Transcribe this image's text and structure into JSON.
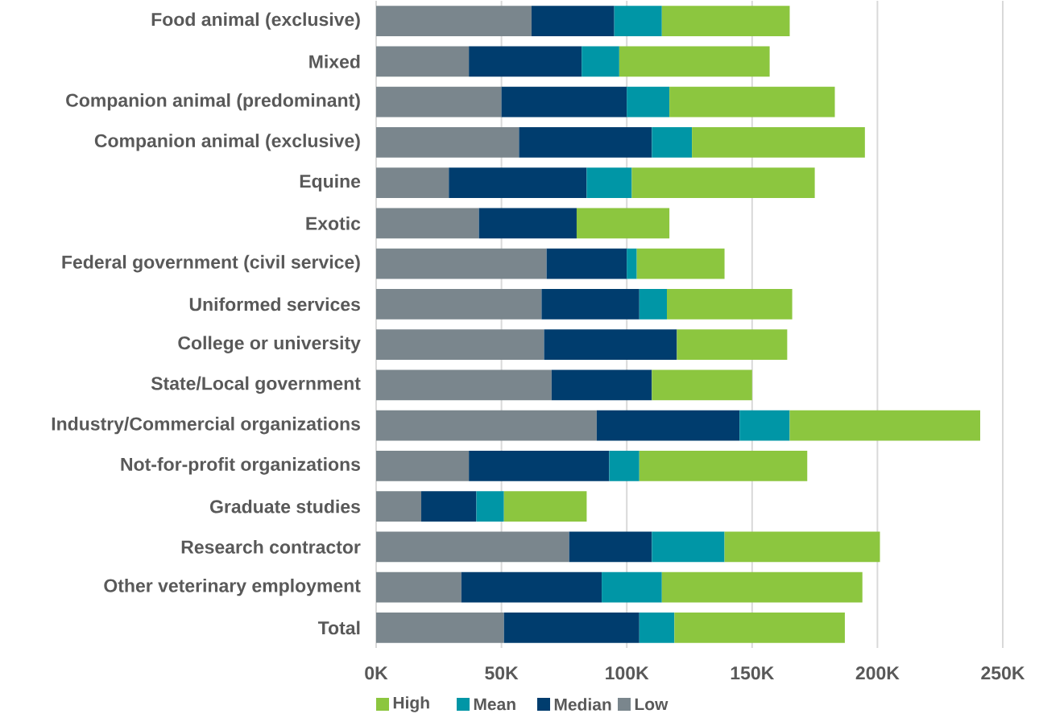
{
  "chart_data": {
    "type": "bar",
    "orientation": "horizontal",
    "stacked": true,
    "categories": [
      "Food animal (exclusive)",
      "Mixed",
      "Companion animal (predominant)",
      "Companion animal (exclusive)",
      "Equine",
      "Exotic",
      "Federal government (civil service)",
      "Uniformed services",
      "College or university",
      "State/Local government",
      "Industry/Commercial organizations",
      "Not-for-profit organizations",
      "Graduate studies",
      "Research contractor",
      "Other veterinary employment",
      "Total"
    ],
    "series": [
      {
        "name": "Low",
        "color": "#7a868d",
        "values": [
          62000,
          37000,
          50000,
          57000,
          29000,
          41000,
          68000,
          66000,
          67000,
          70000,
          88000,
          37000,
          18000,
          77000,
          34000,
          51000
        ]
      },
      {
        "name": "Median",
        "color": "#003d6e",
        "values": [
          33000,
          45000,
          50000,
          53000,
          55000,
          39000,
          32000,
          39000,
          53000,
          40000,
          57000,
          56000,
          22000,
          33000,
          56000,
          54000
        ]
      },
      {
        "name": "Mean",
        "color": "#0096a6",
        "values": [
          19000,
          15000,
          17000,
          16000,
          18000,
          null,
          4000,
          11000,
          null,
          null,
          20000,
          12000,
          11000,
          29000,
          24000,
          14000
        ]
      },
      {
        "name": "High",
        "color": "#8cc63f",
        "values": [
          51000,
          60000,
          66000,
          69000,
          73000,
          37000,
          35000,
          50000,
          44000,
          40000,
          76000,
          67000,
          33000,
          62000,
          80000,
          68000
        ]
      }
    ],
    "xlim": [
      0,
      250000
    ],
    "xticks": [
      {
        "value": 0,
        "label": "0K"
      },
      {
        "value": 50000,
        "label": "50K"
      },
      {
        "value": 100000,
        "label": "100K"
      },
      {
        "value": 150000,
        "label": "150K"
      },
      {
        "value": 200000,
        "label": "200K"
      },
      {
        "value": 250000,
        "label": "250K"
      }
    ],
    "grid": "x",
    "legend": "bottom"
  }
}
